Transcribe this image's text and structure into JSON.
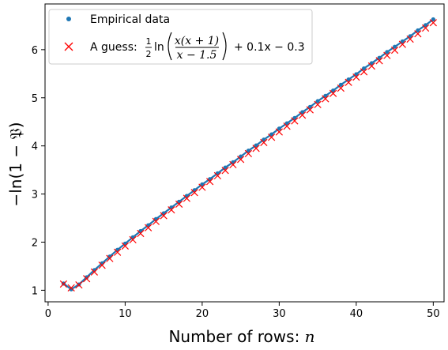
{
  "chart_data": {
    "type": "scatter",
    "xlabel": "Number of rows: ",
    "xlabel_var": "n",
    "ylabel": "−ln(1 − 𝔓)",
    "xlim": [
      -0.4,
      51.4
    ],
    "ylim": [
      0.76,
      6.95
    ],
    "xticks": [
      0,
      10,
      20,
      30,
      40,
      50
    ],
    "yticks": [
      1,
      2,
      3,
      4,
      5,
      6
    ],
    "grid": false,
    "legend_position": "top-left",
    "colors": {
      "empirical": "#1f77b4",
      "guess": "#ff0000"
    },
    "series": [
      {
        "name": "Empirical data",
        "marker": "dot-line",
        "x": [
          2,
          3,
          4,
          5,
          6,
          7,
          8,
          9,
          10,
          11,
          12,
          13,
          14,
          15,
          16,
          17,
          18,
          19,
          20,
          21,
          22,
          23,
          24,
          25,
          26,
          27,
          28,
          29,
          30,
          31,
          32,
          33,
          34,
          35,
          36,
          37,
          38,
          39,
          40,
          41,
          42,
          43,
          44,
          45,
          46,
          47,
          48,
          49,
          50
        ],
        "y": [
          1.14,
          1.02,
          1.12,
          1.27,
          1.42,
          1.56,
          1.7,
          1.84,
          1.97,
          2.1,
          2.23,
          2.35,
          2.48,
          2.6,
          2.72,
          2.84,
          2.96,
          3.08,
          3.2,
          3.31,
          3.43,
          3.55,
          3.66,
          3.78,
          3.9,
          4.01,
          4.13,
          4.24,
          4.36,
          4.47,
          4.58,
          4.7,
          4.81,
          4.93,
          5.04,
          5.15,
          5.27,
          5.38,
          5.49,
          5.61,
          5.72,
          5.83,
          5.95,
          6.06,
          6.17,
          6.28,
          6.4,
          6.51,
          6.63
        ]
      },
      {
        "name": "A guess: ",
        "legend_formula": {
          "half_num": "1",
          "half_den": "2",
          "ln": "ln",
          "numerator": "x(x + 1)",
          "denominator": "x − 1.5",
          "tail": "+ 0.1x − 0.3"
        },
        "marker": "x",
        "x": [
          2,
          3,
          4,
          5,
          6,
          7,
          8,
          9,
          10,
          11,
          12,
          13,
          14,
          15,
          16,
          17,
          18,
          19,
          20,
          21,
          22,
          23,
          24,
          25,
          26,
          27,
          28,
          29,
          30,
          31,
          32,
          33,
          34,
          35,
          36,
          37,
          38,
          39,
          40,
          41,
          42,
          43,
          44,
          45,
          46,
          47,
          48,
          49,
          50
        ],
        "y": [
          1.13,
          1.05,
          1.11,
          1.24,
          1.38,
          1.52,
          1.66,
          1.79,
          1.92,
          2.05,
          2.18,
          2.3,
          2.43,
          2.55,
          2.67,
          2.79,
          2.91,
          3.03,
          3.14,
          3.26,
          3.38,
          3.49,
          3.61,
          3.72,
          3.84,
          3.95,
          4.07,
          4.18,
          4.29,
          4.41,
          4.52,
          4.64,
          4.75,
          4.86,
          4.98,
          5.09,
          5.2,
          5.32,
          5.43,
          5.54,
          5.66,
          5.77,
          5.88,
          5.99,
          6.11,
          6.22,
          6.33,
          6.45,
          6.56
        ]
      }
    ]
  }
}
